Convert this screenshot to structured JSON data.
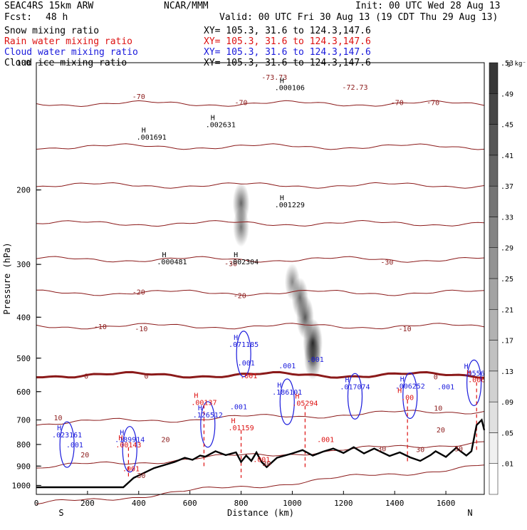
{
  "header": {
    "model": "SEAC4RS 15km ARW",
    "center": "NCAR/MMM",
    "init": "Init: 00 UTC Wed 28 Aug 13",
    "fcst_label": "Fcst:",
    "fcst_value": "48 h",
    "valid": "Valid: 00 UTC Fri 30 Aug 13 (19 CDT Thu 29 Aug 13)"
  },
  "legend": [
    {
      "name": "Snow mixing ratio",
      "xy": "XY= 105.3, 31.6 to 124.3,147.6",
      "color": "#000000"
    },
    {
      "name": "Rain water mixing ratio",
      "xy": "XY= 105.3, 31.6 to 124.3,147.6",
      "color": "#dd1111"
    },
    {
      "name": "Cloud water mixing ratio",
      "xy": "XY= 105.3, 31.6 to 124.3,147.6",
      "color": "#1a1adc"
    },
    {
      "name": "Cloud ice mixing ratio",
      "xy": "XY= 105.3, 31.6 to 124.3,147.6",
      "color": "#000000"
    }
  ],
  "colorbar": {
    "unit": "g kg⁻¹",
    "levels": [
      0.01,
      0.05,
      0.09,
      0.13,
      0.17,
      0.21,
      0.25,
      0.29,
      0.33,
      0.37,
      0.41,
      0.45,
      0.49,
      0.53
    ],
    "labels": [
      ".01",
      ".05",
      ".09",
      ".13",
      ".17",
      ".21",
      ".25",
      ".29",
      ".33",
      ".37",
      ".41",
      ".45",
      ".49",
      ".53"
    ]
  },
  "chart_data": {
    "type": "cross-section",
    "xlabel": "Distance (km)",
    "ylabel": "Pressure (hPa)",
    "xlim": [
      0,
      1750
    ],
    "ylim": [
      1050,
      100
    ],
    "y_scale": "log",
    "x_ticks": [
      "0",
      "200",
      "400",
      "600",
      "800",
      "1000",
      "1200",
      "1400",
      "1600"
    ],
    "x_tick_values": [
      0,
      200,
      400,
      600,
      800,
      1000,
      1200,
      1400,
      1600
    ],
    "y_ticks": [
      "100",
      "200",
      "300",
      "400",
      "500",
      "600",
      "700",
      "800",
      "900",
      "1000"
    ],
    "y_tick_values": [
      100,
      200,
      300,
      400,
      500,
      600,
      700,
      800,
      900,
      1000
    ],
    "end_labels": {
      "left": "S",
      "right": "N"
    },
    "temperature_isotherms_C": [
      {
        "t": -70,
        "p": 125
      },
      {
        "t": -60,
        "p": 158
      },
      {
        "t": -50,
        "p": 195
      },
      {
        "t": -40,
        "p": 240
      },
      {
        "t": -30,
        "p": 292
      },
      {
        "t": -20,
        "p": 350
      },
      {
        "t": -10,
        "p": 420
      },
      {
        "t": 0,
        "p": 548
      },
      {
        "t": 10,
        "p": 665
      },
      {
        "t": 20,
        "p": 790
      },
      {
        "t": 30,
        "p": 900
      }
    ],
    "isotherm_labels": [
      {
        "text": "-70",
        "x": 400,
        "p": 120
      },
      {
        "text": "-73.73",
        "x": 930,
        "p": 108
      },
      {
        "text": "-72.73",
        "x": 1245,
        "p": 114
      },
      {
        "text": "-70",
        "x": 1410,
        "p": 124
      },
      {
        "text": "-70",
        "x": 1550,
        "p": 124
      },
      {
        "text": "-70",
        "x": 800,
        "p": 124
      },
      {
        "text": "-30",
        "x": 760,
        "p": 298
      },
      {
        "text": "-30",
        "x": 1370,
        "p": 296
      },
      {
        "text": "-20",
        "x": 400,
        "p": 348
      },
      {
        "text": "-20",
        "x": 795,
        "p": 355
      },
      {
        "text": "-10",
        "x": 250,
        "p": 420
      },
      {
        "text": "-10",
        "x": 410,
        "p": 425
      },
      {
        "text": "-10",
        "x": 1440,
        "p": 425
      },
      {
        "text": "0",
        "x": 195,
        "p": 550
      },
      {
        "text": "0",
        "x": 430,
        "p": 550
      },
      {
        "text": "0",
        "x": 1560,
        "p": 552
      },
      {
        "text": "10",
        "x": 85,
        "p": 690
      },
      {
        "text": "10",
        "x": 1570,
        "p": 655
      },
      {
        "text": "20",
        "x": 505,
        "p": 778
      },
      {
        "text": "20",
        "x": 190,
        "p": 845
      },
      {
        "text": "20",
        "x": 1580,
        "p": 738
      },
      {
        "text": "30",
        "x": 410,
        "p": 945
      },
      {
        "text": "30",
        "x": 900,
        "p": 885
      },
      {
        "text": "30",
        "x": 1350,
        "p": 818
      },
      {
        "text": "30",
        "x": 1500,
        "p": 820
      },
      {
        "text": "30",
        "x": 1650,
        "p": 818
      }
    ],
    "terrain_pressure_hPa": {
      "x": [
        0,
        200,
        340,
        380,
        460,
        540,
        580,
        610,
        640,
        660,
        700,
        740,
        780,
        800,
        820,
        840,
        860,
        880,
        900,
        940,
        1000,
        1040,
        1080,
        1120,
        1160,
        1200,
        1240,
        1280,
        1320,
        1380,
        1420,
        1460,
        1500,
        1540,
        1560,
        1600,
        1640,
        1680,
        1700,
        1720,
        1740,
        1750
      ],
      "p": [
        1010,
        1010,
        1010,
        960,
        910,
        880,
        860,
        870,
        850,
        855,
        830,
        848,
        835,
        880,
        850,
        875,
        835,
        880,
        905,
        860,
        840,
        825,
        850,
        832,
        818,
        838,
        812,
        840,
        818,
        852,
        835,
        858,
        875,
        848,
        830,
        856,
        815,
        850,
        830,
        720,
        700,
        740
      ]
    },
    "cloud_water_maxima_g_kg": [
      {
        "label": ".023161",
        "x": 120,
        "p": 770
      },
      {
        "label": ".189914",
        "x": 365,
        "p": 790
      },
      {
        "label": ".126512",
        "x": 670,
        "p": 690
      },
      {
        "label": ".071185",
        "x": 810,
        "p": 470
      },
      {
        "label": ".186101",
        "x": 980,
        "p": 610
      },
      {
        "label": ".017074",
        "x": 1245,
        "p": 592
      },
      {
        "label": ".006252",
        "x": 1460,
        "p": 590
      },
      {
        "label": ".0556",
        "x": 1710,
        "p": 550
      }
    ],
    "cloud_water_contour_labels": [
      {
        "label": ".001",
        "x": 150,
        "p": 812
      },
      {
        "label": ".001",
        "x": 820,
        "p": 520
      },
      {
        "label": ".001",
        "x": 790,
        "p": 660
      },
      {
        "label": ".001",
        "x": 980,
        "p": 528
      },
      {
        "label": ".001",
        "x": 1090,
        "p": 510
      },
      {
        "label": ".001",
        "x": 1600,
        "p": 592
      }
    ],
    "rain_water_maxima_g_kg": [
      {
        "label": ".00143",
        "x": 360,
        "p": 812
      },
      {
        "label": ".00137",
        "x": 655,
        "p": 645
      },
      {
        "label": ".01159",
        "x": 800,
        "p": 740
      },
      {
        "label": ".05294",
        "x": 1050,
        "p": 648
      },
      {
        "label": ".00",
        "x": 1450,
        "p": 628
      },
      {
        "label": ".006",
        "x": 1720,
        "p": 570
      }
    ],
    "rain_water_contour_labels": [
      {
        "label": ".001",
        "x": 370,
        "p": 925
      },
      {
        "label": ".001",
        "x": 830,
        "p": 558
      },
      {
        "label": ".001",
        "x": 880,
        "p": 880
      },
      {
        "label": ".001",
        "x": 1130,
        "p": 790
      }
    ],
    "snow_maxima_g_kg": [
      {
        "label": ".002631",
        "x": 720,
        "p": 142
      },
      {
        "label": ".002304",
        "x": 810,
        "p": 300
      },
      {
        "label": ".001229",
        "x": 990,
        "p": 220
      }
    ],
    "cloud_ice_maxima_g_kg": [
      {
        "label": ".001691",
        "x": 450,
        "p": 152
      },
      {
        "label": ".000481",
        "x": 530,
        "p": 300
      },
      {
        "label": ".000106",
        "x": 990,
        "p": 116
      }
    ],
    "shaded_field_cells": [
      {
        "x": 800,
        "p": 215,
        "value": 0.35
      },
      {
        "x": 800,
        "p": 245,
        "value": 0.28
      },
      {
        "x": 1000,
        "p": 330,
        "value": 0.2
      },
      {
        "x": 1030,
        "p": 360,
        "value": 0.33
      },
      {
        "x": 1050,
        "p": 400,
        "value": 0.42
      },
      {
        "x": 1080,
        "p": 460,
        "value": 0.6
      },
      {
        "x": 1080,
        "p": 500,
        "value": 0.4
      }
    ]
  }
}
